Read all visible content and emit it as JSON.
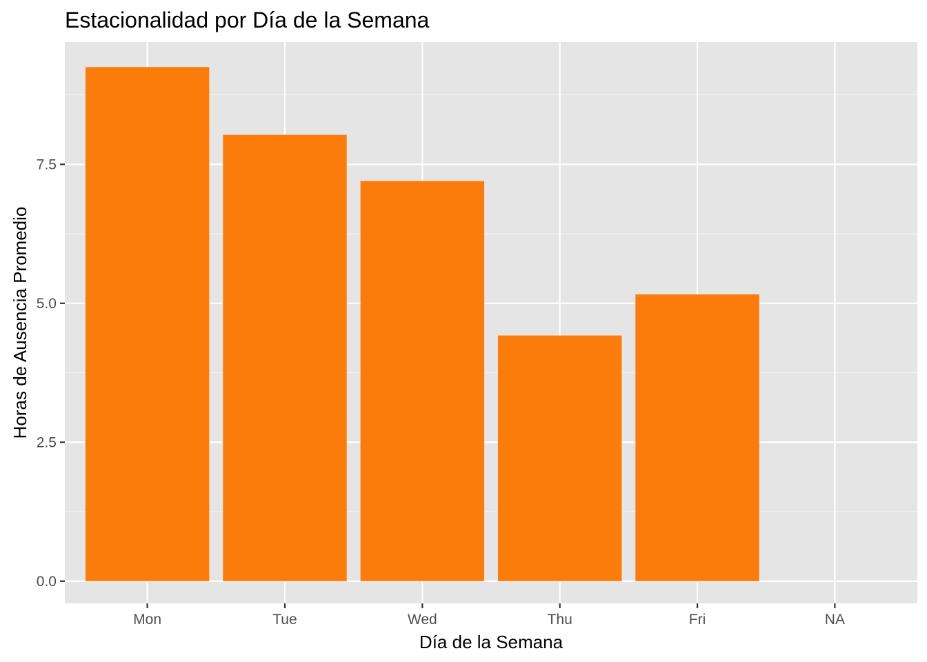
{
  "chart_data": {
    "type": "bar",
    "title": "Estacionalidad por Día de la Semana",
    "xlabel": "Día de la Semana",
    "ylabel": "Horas de Ausencia Promedio",
    "categories": [
      "Mon",
      "Tue",
      "Wed",
      "Thu",
      "Fri",
      "NA"
    ],
    "values": [
      9.25,
      8.03,
      7.2,
      4.42,
      5.16,
      null
    ],
    "ylim": [
      -0.4,
      9.7
    ],
    "yticks": [
      0.0,
      2.5,
      5.0,
      7.5
    ],
    "ytick_labels": [
      "0.0",
      "2.5",
      "5.0",
      "7.5"
    ],
    "grid": true,
    "legend": "none",
    "colors": {
      "bar": "#FB7C0B",
      "panel_background": "#E5E5E5",
      "grid_major": "#FFFFFF",
      "grid_minor": "#F2F2F2",
      "tick_text": "#4D4D4D",
      "tick_mark": "#333333"
    }
  }
}
